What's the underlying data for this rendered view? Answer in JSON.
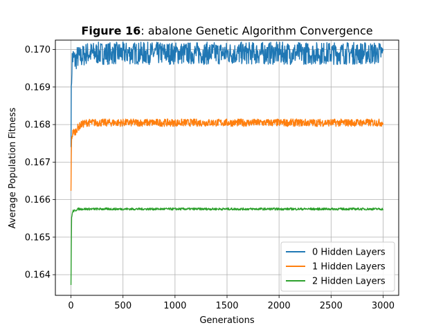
{
  "chart_data": {
    "type": "line",
    "title_bold": "Figure 16",
    "title_rest": ": abalone Genetic Algorithm Convergence",
    "xlabel": "Generations",
    "ylabel": "Average Population Fitness",
    "xlim": [
      -150,
      3150
    ],
    "ylim": [
      0.16345,
      0.17025
    ],
    "xticks": [
      0,
      500,
      1000,
      1500,
      2000,
      2500,
      3000
    ],
    "yticks": [
      0.164,
      0.165,
      0.166,
      0.167,
      0.168,
      0.169,
      0.17
    ],
    "ytick_labels": [
      "0.164",
      "0.165",
      "0.166",
      "0.167",
      "0.168",
      "0.169",
      "0.170"
    ],
    "grid": true,
    "legend_position": "lower-right",
    "series": [
      {
        "name": "0 Hidden Layers",
        "color": "#1f77b4",
        "x": [
          0,
          5,
          10,
          20,
          40,
          60,
          100,
          150,
          200,
          300,
          500,
          1000,
          1500,
          2000,
          2500,
          3000
        ],
        "values": [
          0.1678,
          0.1692,
          0.1697,
          0.1698,
          0.1697,
          0.1698,
          0.1698,
          0.1699,
          0.1699,
          0.1699,
          0.1699,
          0.1699,
          0.1699,
          0.1699,
          0.1699,
          0.1699
        ],
        "band": [
          0.0004,
          0.0005,
          0.0004,
          0.0003,
          0.0003,
          0.0003,
          0.0003,
          0.0003,
          0.0003,
          0.0003,
          0.0003,
          0.0003,
          0.0003,
          0.0003,
          0.0003,
          0.0003
        ]
      },
      {
        "name": "1 Hidden Layers",
        "color": "#ff7f0e",
        "x": [
          0,
          5,
          10,
          20,
          40,
          60,
          100,
          150,
          200,
          300,
          500,
          1000,
          1500,
          2000,
          2500,
          3000
        ],
        "values": [
          0.1663,
          0.1676,
          0.1677,
          0.1678,
          0.1678,
          0.1679,
          0.168,
          0.16805,
          0.16805,
          0.16805,
          0.16805,
          0.16805,
          0.16805,
          0.16805,
          0.16805,
          0.16805
        ],
        "band": [
          0.0001,
          0.0001,
          0.0001,
          0.0001,
          0.0001,
          0.0001,
          0.0001,
          0.0001,
          0.0001,
          0.0001,
          0.0001,
          0.0001,
          0.0001,
          0.0001,
          0.0001,
          0.0001
        ]
      },
      {
        "name": "2 Hidden Layers",
        "color": "#2ca02c",
        "x": [
          0,
          5,
          10,
          20,
          40,
          60,
          100,
          150,
          200,
          300,
          500,
          1000,
          1500,
          2000,
          2500,
          3000
        ],
        "values": [
          0.1637,
          0.1655,
          0.1656,
          0.1657,
          0.1657,
          0.16575,
          0.16575,
          0.16575,
          0.16575,
          0.16575,
          0.16575,
          0.16575,
          0.16575,
          0.16575,
          0.16575,
          0.16575
        ],
        "band": [
          3e-05,
          3e-05,
          3e-05,
          3e-05,
          3e-05,
          3e-05,
          3e-05,
          3e-05,
          3e-05,
          3e-05,
          3e-05,
          3e-05,
          3e-05,
          3e-05,
          3e-05,
          3e-05
        ]
      }
    ]
  }
}
